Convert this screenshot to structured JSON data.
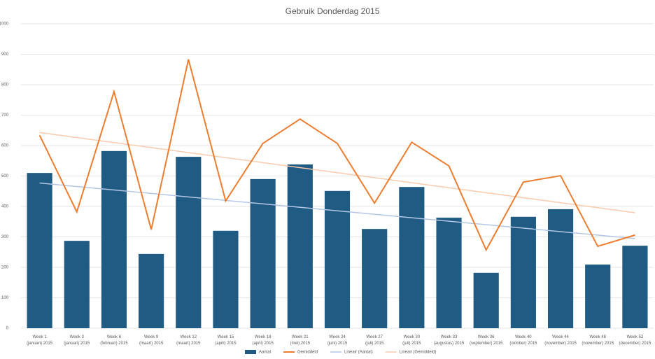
{
  "chart_data": {
    "type": "bar-line",
    "title": "Gebruik Donderdag 2015",
    "categories": [
      "Week 1 (januari) 2015",
      "Week 3 (januari) 2015",
      "Week 6 (februari) 2015",
      "Week 9 (maart) 2015",
      "Week 12 (maart) 2015",
      "Week 15 (april) 2015",
      "Week 18 (april) 2015",
      "Week 21 (mei) 2015",
      "Week 24 (juni) 2015",
      "Week 27 (juli) 2015",
      "Week 30 (juli) 2015",
      "Week 33 (augustus) 2015",
      "Week 36 (september) 2015",
      "Week 40 (oktober) 2015",
      "Week 44 (november) 2015",
      "Week 48 (november) 2015",
      "Week 52 (december) 2015"
    ],
    "series": [
      {
        "name": "Aantal",
        "kind": "bar",
        "color": "#1f5b82",
        "values": [
          510,
          287,
          582,
          244,
          563,
          320,
          490,
          538,
          451,
          326,
          464,
          363,
          182,
          366,
          391,
          209,
          271
        ],
        "trend_name": "Lineair (Aantal)",
        "trend_color": "#b4c7e7"
      },
      {
        "name": "Gemiddeld",
        "kind": "line",
        "color": "#ed7d31",
        "values": [
          634,
          382,
          777,
          324,
          883,
          418,
          607,
          687,
          607,
          411,
          611,
          533,
          257,
          480,
          501,
          269,
          306
        ],
        "trend_name": "Lineair (Gemiddeld)",
        "trend_color": "#f8cbad"
      }
    ],
    "ylim": [
      0,
      1000
    ],
    "yticks": [
      0,
      100,
      200,
      300,
      400,
      500,
      600,
      700,
      800,
      900,
      1000
    ],
    "grid": true
  }
}
